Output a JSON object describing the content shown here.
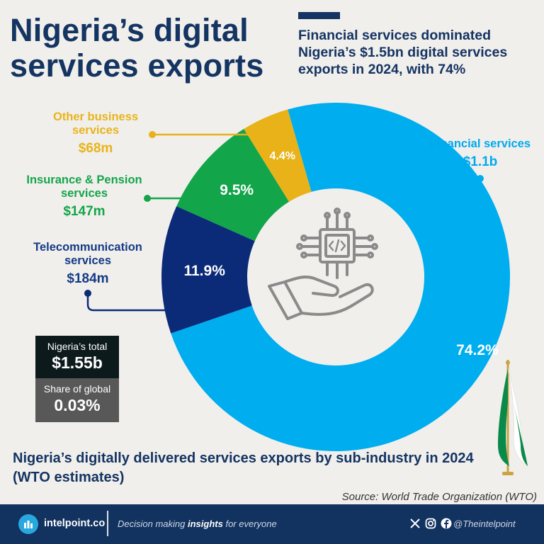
{
  "header": {
    "title": "Nigeria’s digital services exports",
    "subtitle": "Financial services dominated Nigeria’s $1.5bn digital services exports in 2024, with 74%"
  },
  "chart_data": {
    "type": "pie",
    "title": "Nigeria’s digitally delivered services exports by sub-industry in 2024 (WTO estimates)",
    "donut": true,
    "slices": [
      {
        "name": "Financial services",
        "value_label": "$1.1b",
        "percent": 74.2,
        "percent_label": "74.2%",
        "color": "#00adef"
      },
      {
        "name": "Telecommunication services",
        "value_label": "$184m",
        "percent": 11.9,
        "percent_label": "11.9%",
        "color": "#0b2a78"
      },
      {
        "name": "Insurance & Pension services",
        "value_label": "$147m",
        "percent": 9.5,
        "percent_label": "9.5%",
        "color": "#12a54a"
      },
      {
        "name": "Other business services",
        "value_label": "$68m",
        "percent": 4.4,
        "percent_label": "4.4%",
        "color": "#e8b218"
      }
    ],
    "center_icon": "digital-service-hand-icon"
  },
  "summary": {
    "total_label": "Nigeria’s total",
    "total_value": "$1.55b",
    "share_label": "Share of global",
    "share_value": "0.03%"
  },
  "source": "Source: World Trade Organization (WTO)",
  "footer": {
    "brand": "intelpoint.co",
    "tagline_prefix": "Decision making ",
    "tagline_emphasis": "insights",
    "tagline_suffix": " for everyone",
    "handle": "@Theintelpoint",
    "icons": [
      "x-icon",
      "instagram-icon",
      "facebook-icon"
    ],
    "logo_color": "#29a8e0"
  },
  "flag_colors": [
    "#0a8a4a",
    "#ffffff"
  ]
}
